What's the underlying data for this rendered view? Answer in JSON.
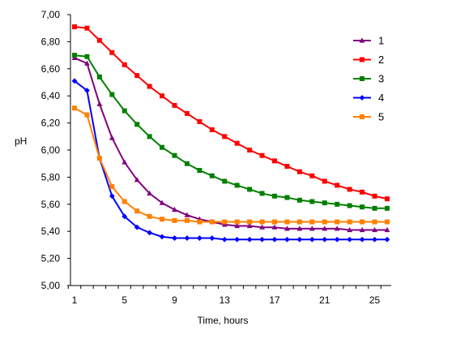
{
  "chart_data": {
    "type": "line",
    "title": "",
    "xlabel": "Time, hours",
    "ylabel": "pH",
    "xlim": [
      1,
      26
    ],
    "ylim": [
      5.0,
      7.0
    ],
    "x_ticks": [
      1,
      5,
      9,
      13,
      17,
      21,
      25
    ],
    "x_tick_labels": [
      "1",
      "5",
      "9",
      "13",
      "17",
      "21",
      "25"
    ],
    "y_ticks": [
      5.0,
      5.2,
      5.4,
      5.6,
      5.8,
      6.0,
      6.2,
      6.4,
      6.6,
      6.8,
      7.0
    ],
    "y_tick_labels": [
      "5,00",
      "5,20",
      "5,40",
      "5,60",
      "5,80",
      "6,00",
      "6,20",
      "6,40",
      "6,60",
      "6,80",
      "7,00"
    ],
    "grid": false,
    "legend_position": "top-right",
    "x": [
      1,
      2,
      3,
      4,
      5,
      6,
      7,
      8,
      9,
      10,
      11,
      12,
      13,
      14,
      15,
      16,
      17,
      18,
      19,
      20,
      21,
      22,
      23,
      24,
      25,
      26
    ],
    "series": [
      {
        "name": "1",
        "color": "#800080",
        "marker": "triangle",
        "values": [
          6.68,
          6.64,
          6.34,
          6.09,
          5.91,
          5.78,
          5.68,
          5.61,
          5.56,
          5.52,
          5.49,
          5.47,
          5.45,
          5.44,
          5.44,
          5.43,
          5.43,
          5.42,
          5.42,
          5.42,
          5.42,
          5.42,
          5.41,
          5.41,
          5.41,
          5.41
        ]
      },
      {
        "name": "2",
        "color": "#ff0000",
        "marker": "square",
        "values": [
          6.91,
          6.9,
          6.81,
          6.72,
          6.63,
          6.55,
          6.47,
          6.4,
          6.33,
          6.27,
          6.21,
          6.15,
          6.1,
          6.05,
          6.0,
          5.96,
          5.92,
          5.88,
          5.84,
          5.81,
          5.77,
          5.74,
          5.71,
          5.69,
          5.66,
          5.64
        ]
      },
      {
        "name": "3",
        "color": "#008000",
        "marker": "square",
        "values": [
          6.7,
          6.69,
          6.54,
          6.41,
          6.29,
          6.19,
          6.1,
          6.02,
          5.96,
          5.9,
          5.85,
          5.81,
          5.77,
          5.74,
          5.71,
          5.68,
          5.66,
          5.65,
          5.63,
          5.62,
          5.61,
          5.6,
          5.59,
          5.58,
          5.57,
          5.57
        ]
      },
      {
        "name": "4",
        "color": "#0000ff",
        "marker": "diamond",
        "values": [
          6.51,
          6.44,
          5.94,
          5.66,
          5.51,
          5.43,
          5.39,
          5.36,
          5.35,
          5.35,
          5.35,
          5.35,
          5.34,
          5.34,
          5.34,
          5.34,
          5.34,
          5.34,
          5.34,
          5.34,
          5.34,
          5.34,
          5.34,
          5.34,
          5.34,
          5.34
        ]
      },
      {
        "name": "5",
        "color": "#ff8000",
        "marker": "square",
        "values": [
          6.31,
          6.26,
          5.94,
          5.73,
          5.62,
          5.55,
          5.51,
          5.49,
          5.48,
          5.48,
          5.47,
          5.47,
          5.47,
          5.47,
          5.47,
          5.47,
          5.47,
          5.47,
          5.47,
          5.47,
          5.47,
          5.47,
          5.47,
          5.47,
          5.47,
          5.47
        ]
      }
    ]
  }
}
